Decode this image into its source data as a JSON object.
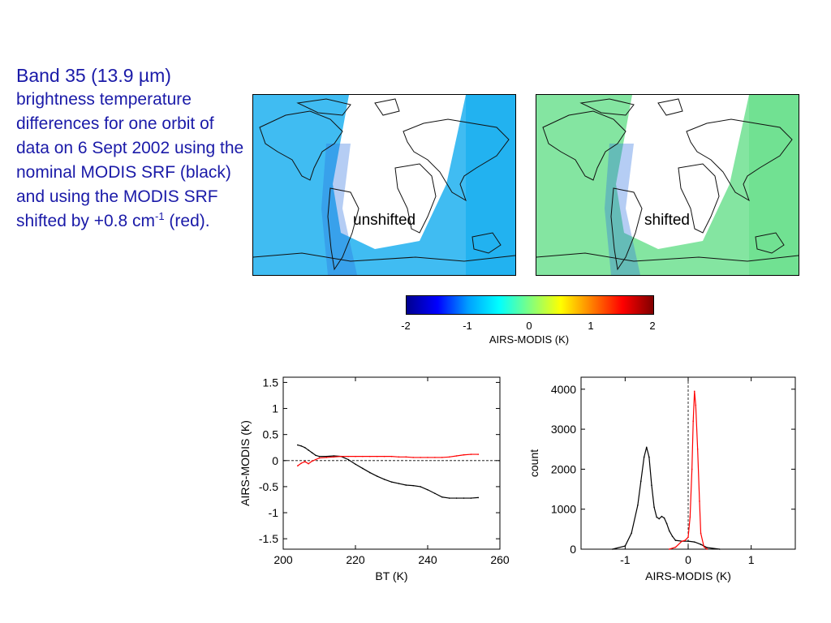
{
  "caption": {
    "title": "Band 35 (13.9 µm)",
    "body": "brightness temperature differences for one orbit of data on 6 Sept 2002 using the nominal MODIS SRF (black) and using the MODIS SRF shifted by +0.8 cm",
    "sup": "-1",
    "tail": "(red)."
  },
  "maps": [
    {
      "label": "unshifted",
      "tint": "#1fb0f0"
    },
    {
      "label": "shifted",
      "tint": "#6fe090"
    }
  ],
  "colorbar": {
    "label": "AIRS-MODIS (K)",
    "ticks": [
      "-2",
      "-1",
      "0",
      "1",
      "2"
    ],
    "colors": [
      "#00008f",
      "#0000ff",
      "#00a0ff",
      "#00ffff",
      "#80ff80",
      "#ffff00",
      "#ff8000",
      "#ff0000",
      "#800000"
    ]
  },
  "chart_data": [
    {
      "type": "line",
      "xlabel": "BT (K)",
      "ylabel": "AIRS-MODIS (K)",
      "xlim": [
        200,
        260
      ],
      "ylim": [
        -1.7,
        1.6
      ],
      "xticks": [
        "200",
        "220",
        "240",
        "260"
      ],
      "yticks": [
        "1.5",
        "1",
        "0.5",
        "0",
        "-0.5",
        "-1",
        "-1.5"
      ],
      "grid": false,
      "reference_line_y": 0,
      "series": [
        {
          "color": "#000000",
          "x": [
            204,
            205,
            206,
            207,
            208,
            209,
            210,
            212,
            214,
            216,
            218,
            220,
            222,
            224,
            226,
            228,
            230,
            232,
            234,
            236,
            238,
            240,
            242,
            244,
            246,
            248,
            250,
            252,
            254
          ],
          "y": [
            0.3,
            0.28,
            0.25,
            0.2,
            0.15,
            0.1,
            0.08,
            0.08,
            0.09,
            0.08,
            0.02,
            -0.07,
            -0.15,
            -0.23,
            -0.3,
            -0.36,
            -0.41,
            -0.44,
            -0.47,
            -0.48,
            -0.5,
            -0.56,
            -0.63,
            -0.7,
            -0.72,
            -0.72,
            -0.72,
            -0.72,
            -0.71
          ]
        },
        {
          "color": "#ff0000",
          "x": [
            204,
            205,
            206,
            207,
            208,
            209,
            210,
            212,
            214,
            216,
            218,
            220,
            222,
            224,
            226,
            228,
            230,
            232,
            234,
            236,
            238,
            240,
            242,
            244,
            246,
            248,
            250,
            252,
            254
          ],
          "y": [
            -0.1,
            -0.05,
            -0.02,
            -0.06,
            -0.01,
            0.02,
            0.05,
            0.06,
            0.07,
            0.08,
            0.08,
            0.08,
            0.08,
            0.08,
            0.08,
            0.08,
            0.08,
            0.07,
            0.07,
            0.06,
            0.06,
            0.06,
            0.06,
            0.06,
            0.07,
            0.09,
            0.11,
            0.12,
            0.12
          ]
        }
      ]
    },
    {
      "type": "line",
      "xlabel": "AIRS-MODIS (K)",
      "ylabel": "count",
      "xlim": [
        -1.7,
        1.7
      ],
      "ylim": [
        0,
        4300
      ],
      "xticks": [
        "-1",
        "0",
        "1"
      ],
      "yticks": [
        "4000",
        "3000",
        "2000",
        "1000",
        "0"
      ],
      "grid": false,
      "reference_line_x": 0,
      "series": [
        {
          "color": "#000000",
          "x": [
            -1.2,
            -1.0,
            -0.9,
            -0.8,
            -0.75,
            -0.7,
            -0.66,
            -0.62,
            -0.58,
            -0.54,
            -0.5,
            -0.46,
            -0.42,
            -0.38,
            -0.34,
            -0.3,
            -0.25,
            -0.2,
            -0.1,
            0.0,
            0.1,
            0.2,
            0.3,
            0.5
          ],
          "y": [
            0,
            80,
            400,
            1100,
            1700,
            2300,
            2550,
            2300,
            1600,
            1050,
            800,
            760,
            820,
            780,
            640,
            460,
            320,
            220,
            200,
            200,
            180,
            120,
            40,
            0
          ]
        },
        {
          "color": "#ff0000",
          "x": [
            -0.3,
            -0.2,
            -0.1,
            -0.05,
            0.0,
            0.03,
            0.06,
            0.08,
            0.1,
            0.12,
            0.15,
            0.18,
            0.2,
            0.25,
            0.3
          ],
          "y": [
            0,
            50,
            200,
            220,
            300,
            800,
            2000,
            3200,
            3950,
            3600,
            2500,
            1200,
            400,
            60,
            0
          ]
        }
      ]
    }
  ]
}
